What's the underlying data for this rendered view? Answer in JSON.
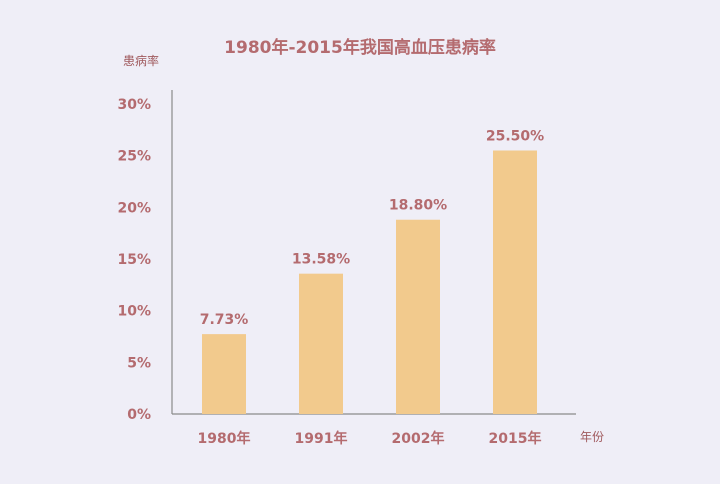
{
  "chart_data": {
    "type": "bar",
    "title": "1980年-2015年我国高血压患病率",
    "ylabel": "患病率",
    "xlabel": "年份",
    "categories": [
      "1980年",
      "1991年",
      "2002年",
      "2015年"
    ],
    "values": [
      7.73,
      13.58,
      18.8,
      25.5
    ],
    "data_labels": [
      "7.73%",
      "13.58%",
      "18.80%",
      "25.50%"
    ],
    "ylim": [
      0,
      30
    ],
    "yticks": [
      0,
      5,
      10,
      15,
      20,
      25,
      30
    ],
    "ytick_labels": [
      "0%",
      "5%",
      "10%",
      "15%",
      "20%",
      "25%",
      "30%"
    ],
    "grid": false,
    "legend": "none",
    "colors": {
      "bar": "#f2ca8d",
      "text": "#b46b6f",
      "axis": "#8a8a8a",
      "label": "#a05a5e"
    }
  }
}
